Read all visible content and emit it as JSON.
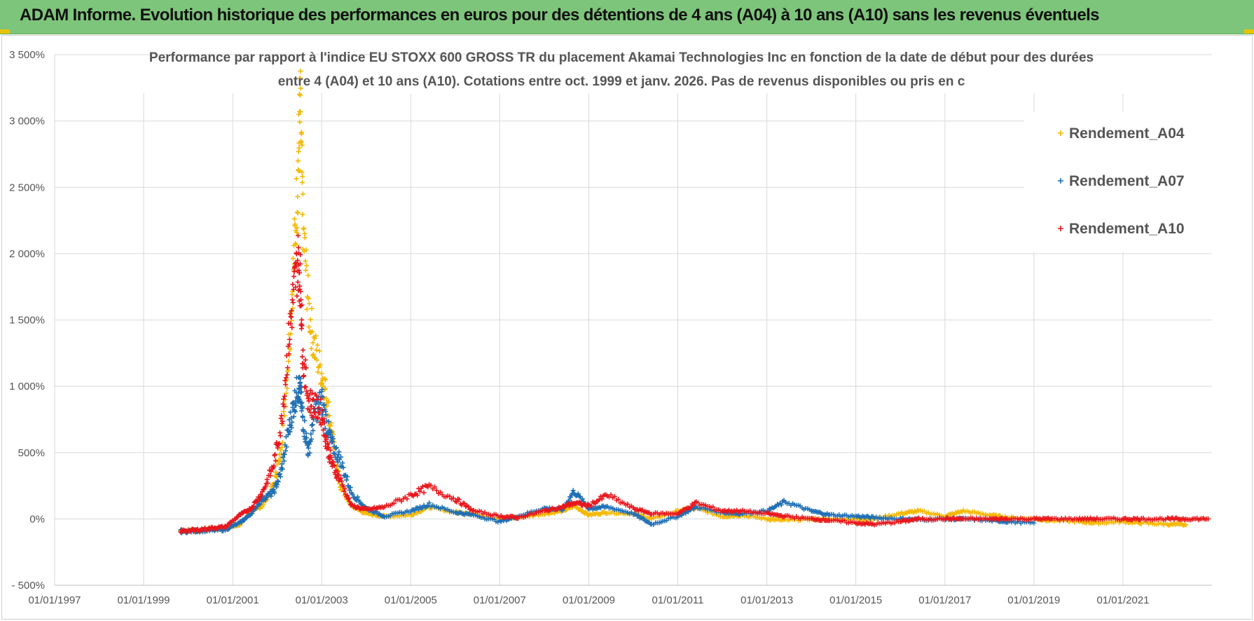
{
  "banner": {
    "title": "ADAM Informe. Evolution historique des performances en euros pour des détentions de 4 ans (A04) à 10 ans (A10) sans les revenus éventuels"
  },
  "chart_data": {
    "type": "scatter",
    "title_line1": "Performance par rapport à l'indice EU STOXX 600 GROSS TR  du placement Akamai Technologies Inc en fonction de la date de début pour des durées",
    "title_line2": "entre 4 (A04) et 10 ans (A10).  Cotations entre oct. 1999 et janv. 2026.  Pas de revenus disponibles ou pris en c",
    "xlabel": "",
    "ylabel": "",
    "x_ticks": [
      "01/01/1997",
      "01/01/1999",
      "01/01/2001",
      "01/01/2003",
      "01/01/2005",
      "01/01/2007",
      "01/01/2009",
      "01/01/2011",
      "01/01/2013",
      "01/01/2015",
      "01/01/2017",
      "01/01/2019",
      "01/01/2021"
    ],
    "y_ticks": [
      "- 500%",
      "0%",
      "500%",
      "1 000%",
      "1 500%",
      "2 000%",
      "2 500%",
      "3 000%",
      "3 500%"
    ],
    "xlim": [
      "1997-01-01",
      "2023-01-01"
    ],
    "ylim": [
      -500,
      3500
    ],
    "grid": true,
    "legend_position": "top-right",
    "marker": "+",
    "series": [
      {
        "name": "Rendement_A04",
        "color": "#f5b800",
        "points": [
          [
            "1999-11-01",
            -90
          ],
          [
            "2000-03-01",
            -85
          ],
          [
            "2000-07-01",
            -80
          ],
          [
            "2000-11-01",
            -70
          ],
          [
            "2001-03-01",
            -40
          ],
          [
            "2001-06-01",
            50
          ],
          [
            "2001-09-01",
            100
          ],
          [
            "2001-12-01",
            250
          ],
          [
            "2002-02-01",
            500
          ],
          [
            "2002-04-01",
            1200
          ],
          [
            "2002-05-15",
            1900
          ],
          [
            "2002-06-20",
            2600
          ],
          [
            "2002-07-10",
            3100
          ],
          [
            "2002-08-01",
            2200
          ],
          [
            "2002-09-15",
            1600
          ],
          [
            "2002-11-01",
            1300
          ],
          [
            "2003-01-01",
            1100
          ],
          [
            "2003-02-15",
            900
          ],
          [
            "2003-04-01",
            600
          ],
          [
            "2003-06-01",
            250
          ],
          [
            "2003-09-01",
            100
          ],
          [
            "2004-01-01",
            40
          ],
          [
            "2004-06-01",
            20
          ],
          [
            "2005-01-01",
            30
          ],
          [
            "2005-06-01",
            90
          ],
          [
            "2006-01-01",
            50
          ],
          [
            "2006-06-01",
            40
          ],
          [
            "2007-01-01",
            0
          ],
          [
            "2007-06-01",
            10
          ],
          [
            "2008-01-01",
            40
          ],
          [
            "2008-06-01",
            60
          ],
          [
            "2008-09-01",
            100
          ],
          [
            "2009-01-01",
            30
          ],
          [
            "2009-06-01",
            50
          ],
          [
            "2010-01-01",
            40
          ],
          [
            "2010-06-01",
            0
          ],
          [
            "2011-01-01",
            60
          ],
          [
            "2011-06-01",
            80
          ],
          [
            "2012-01-01",
            20
          ],
          [
            "2012-06-01",
            30
          ],
          [
            "2013-01-01",
            0
          ],
          [
            "2013-06-01",
            -10
          ],
          [
            "2014-01-01",
            0
          ],
          [
            "2014-06-01",
            -5
          ],
          [
            "2015-01-01",
            0
          ],
          [
            "2015-06-01",
            0
          ],
          [
            "2016-01-01",
            40
          ],
          [
            "2016-06-01",
            60
          ],
          [
            "2017-01-01",
            20
          ],
          [
            "2017-06-01",
            60
          ],
          [
            "2018-01-01",
            30
          ],
          [
            "2018-06-01",
            10
          ],
          [
            "2019-01-01",
            0
          ],
          [
            "2019-06-01",
            -10
          ],
          [
            "2020-01-01",
            -20
          ],
          [
            "2020-06-01",
            -30
          ],
          [
            "2021-01-01",
            -20
          ],
          [
            "2021-06-01",
            -30
          ],
          [
            "2022-01-01",
            -40
          ],
          [
            "2022-06-01",
            -45
          ]
        ]
      },
      {
        "name": "Rendement_A07",
        "color": "#1f6fb5",
        "points": [
          [
            "1999-11-01",
            -95
          ],
          [
            "2000-03-01",
            -90
          ],
          [
            "2000-07-01",
            -85
          ],
          [
            "2000-11-01",
            -80
          ],
          [
            "2001-03-01",
            -30
          ],
          [
            "2001-06-01",
            40
          ],
          [
            "2001-09-01",
            150
          ],
          [
            "2001-12-01",
            200
          ],
          [
            "2002-02-01",
            350
          ],
          [
            "2002-04-01",
            650
          ],
          [
            "2002-05-15",
            850
          ],
          [
            "2002-06-20",
            1000
          ],
          [
            "2002-07-10",
            950
          ],
          [
            "2002-08-01",
            750
          ],
          [
            "2002-09-15",
            500
          ],
          [
            "2002-11-01",
            800
          ],
          [
            "2003-01-01",
            900
          ],
          [
            "2003-02-15",
            700
          ],
          [
            "2003-04-01",
            550
          ],
          [
            "2003-06-01",
            450
          ],
          [
            "2003-09-01",
            200
          ],
          [
            "2004-01-01",
            80
          ],
          [
            "2004-06-01",
            20
          ],
          [
            "2005-01-01",
            60
          ],
          [
            "2005-06-01",
            110
          ],
          [
            "2006-01-01",
            50
          ],
          [
            "2006-06-01",
            30
          ],
          [
            "2007-01-01",
            -20
          ],
          [
            "2007-06-01",
            20
          ],
          [
            "2008-01-01",
            80
          ],
          [
            "2008-06-01",
            70
          ],
          [
            "2008-09-01",
            210
          ],
          [
            "2009-01-01",
            80
          ],
          [
            "2009-06-01",
            90
          ],
          [
            "2010-01-01",
            40
          ],
          [
            "2010-06-01",
            -40
          ],
          [
            "2011-01-01",
            20
          ],
          [
            "2011-06-01",
            90
          ],
          [
            "2012-01-01",
            50
          ],
          [
            "2012-06-01",
            40
          ],
          [
            "2013-01-01",
            60
          ],
          [
            "2013-06-01",
            130
          ],
          [
            "2014-01-01",
            60
          ],
          [
            "2014-06-01",
            30
          ],
          [
            "2015-01-01",
            20
          ],
          [
            "2015-06-01",
            10
          ],
          [
            "2016-01-01",
            0
          ],
          [
            "2016-06-01",
            -5
          ],
          [
            "2017-01-01",
            0
          ],
          [
            "2017-06-01",
            0
          ],
          [
            "2018-01-01",
            -10
          ],
          [
            "2018-06-01",
            -20
          ],
          [
            "2019-01-01",
            -30
          ]
        ]
      },
      {
        "name": "Rendement_A10",
        "color": "#e8171c",
        "points": [
          [
            "1999-11-01",
            -90
          ],
          [
            "2000-03-01",
            -85
          ],
          [
            "2000-07-01",
            -70
          ],
          [
            "2000-11-01",
            -60
          ],
          [
            "2001-03-01",
            30
          ],
          [
            "2001-06-01",
            80
          ],
          [
            "2001-09-01",
            200
          ],
          [
            "2001-12-01",
            400
          ],
          [
            "2002-02-01",
            700
          ],
          [
            "2002-04-01",
            1300
          ],
          [
            "2002-05-15",
            1700
          ],
          [
            "2002-06-20",
            1950
          ],
          [
            "2002-07-10",
            1800
          ],
          [
            "2002-08-01",
            1200
          ],
          [
            "2002-09-15",
            900
          ],
          [
            "2002-11-01",
            850
          ],
          [
            "2003-01-01",
            800
          ],
          [
            "2003-02-15",
            550
          ],
          [
            "2003-04-01",
            400
          ],
          [
            "2003-06-01",
            300
          ],
          [
            "2003-09-01",
            100
          ],
          [
            "2004-01-01",
            70
          ],
          [
            "2004-06-01",
            90
          ],
          [
            "2005-01-01",
            180
          ],
          [
            "2005-06-01",
            240
          ],
          [
            "2006-01-01",
            150
          ],
          [
            "2006-06-01",
            60
          ],
          [
            "2007-01-01",
            20
          ],
          [
            "2007-06-01",
            10
          ],
          [
            "2008-01-01",
            60
          ],
          [
            "2008-06-01",
            90
          ],
          [
            "2008-09-01",
            120
          ],
          [
            "2009-01-01",
            100
          ],
          [
            "2009-06-01",
            180
          ],
          [
            "2010-01-01",
            80
          ],
          [
            "2010-06-01",
            40
          ],
          [
            "2011-01-01",
            40
          ],
          [
            "2011-06-01",
            120
          ],
          [
            "2012-01-01",
            60
          ],
          [
            "2012-06-01",
            60
          ],
          [
            "2013-01-01",
            40
          ],
          [
            "2013-06-01",
            20
          ],
          [
            "2014-01-01",
            0
          ],
          [
            "2014-06-01",
            -10
          ],
          [
            "2015-01-01",
            -30
          ],
          [
            "2015-06-01",
            -40
          ],
          [
            "2016-01-01",
            -20
          ],
          [
            "2016-06-01",
            0
          ],
          [
            "2017-01-01",
            0
          ],
          [
            "2017-06-01",
            0
          ],
          [
            "2018-01-01",
            0
          ],
          [
            "2018-06-01",
            0
          ],
          [
            "2019-01-01",
            0
          ],
          [
            "2019-06-01",
            0
          ],
          [
            "2020-01-01",
            0
          ],
          [
            "2020-06-01",
            0
          ],
          [
            "2021-01-01",
            0
          ],
          [
            "2021-06-01",
            0
          ],
          [
            "2022-01-01",
            0
          ],
          [
            "2022-06-01",
            0
          ],
          [
            "2022-12-01",
            0
          ]
        ]
      }
    ]
  }
}
